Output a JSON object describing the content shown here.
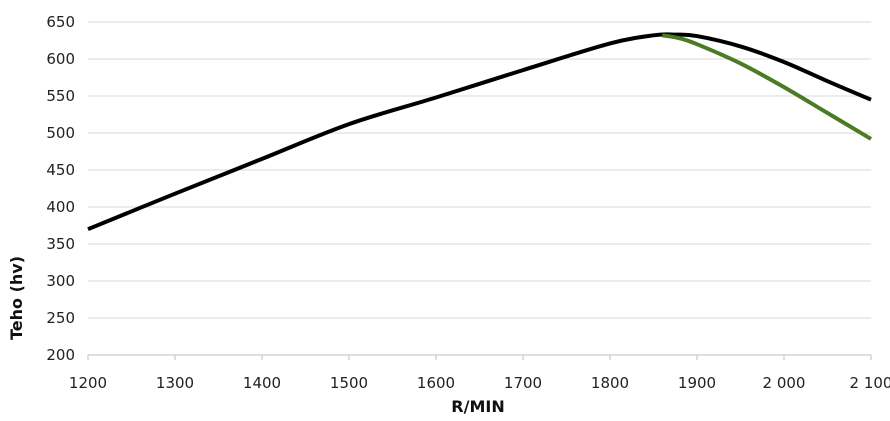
{
  "chart_data": {
    "type": "line",
    "title": "",
    "xlabel": "R/MIN",
    "ylabel": "Teho (hv)",
    "xlim": [
      1200,
      2100
    ],
    "ylim": [
      200,
      650
    ],
    "grid": true,
    "legend": "none",
    "x_ticks": [
      1200,
      1300,
      1400,
      1500,
      1600,
      1700,
      1800,
      1900,
      2000,
      2100
    ],
    "x_tick_labels": [
      "1200",
      "1300",
      "1400",
      "1500",
      "1600",
      "1700",
      "1800",
      "1900",
      "2 000",
      "2 100"
    ],
    "y_ticks": [
      200,
      250,
      300,
      350,
      400,
      450,
      500,
      550,
      600,
      650
    ],
    "y_tick_labels": [
      "200",
      "250",
      "300",
      "350",
      "400",
      "450",
      "500",
      "550",
      "600",
      "650"
    ],
    "series": [
      {
        "color": "#000000",
        "x": [
          1200,
          1300,
          1400,
          1500,
          1600,
          1700,
          1800,
          1850,
          1875,
          1900,
          1950,
          2000,
          2050,
          2100
        ],
        "y": [
          370,
          418,
          465,
          512,
          548,
          585,
          621,
          632,
          633,
          631,
          617,
          596,
          570,
          545
        ]
      },
      {
        "color": "#4a7c23",
        "x": [
          1860,
          1880,
          1900,
          1950,
          2000,
          2050,
          2100
        ],
        "y": [
          632,
          628,
          620,
          594,
          562,
          527,
          492
        ]
      }
    ]
  }
}
